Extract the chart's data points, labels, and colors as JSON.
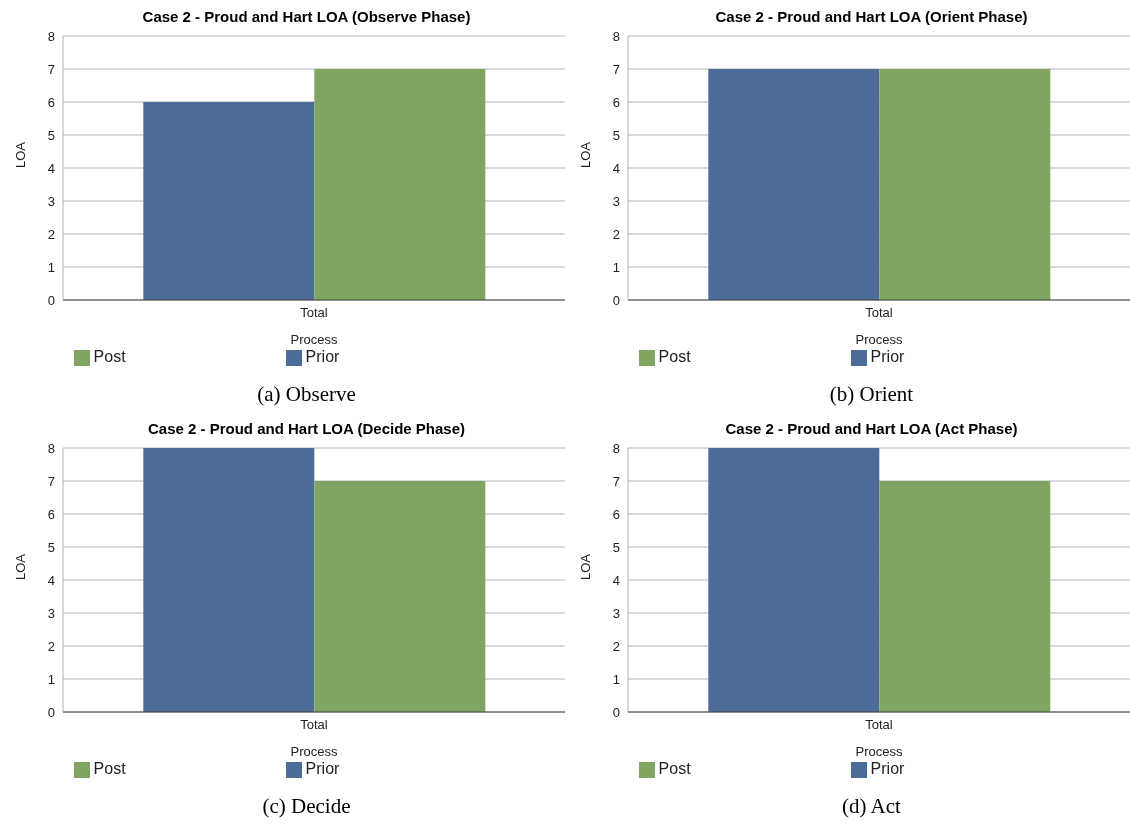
{
  "chart_data": [
    {
      "type": "bar",
      "title": "Case 2 - Proud and Hart LOA (Observe Phase)",
      "xlabel": "Process",
      "ylabel": "LOA",
      "categories": [
        "Total"
      ],
      "series": [
        {
          "name": "Prior",
          "color": "#4d6b99",
          "values": [
            6
          ]
        },
        {
          "name": "Post",
          "color": "#80a461",
          "values": [
            7
          ]
        }
      ],
      "ylim": [
        0,
        8
      ],
      "yticks": [
        0,
        1,
        2,
        3,
        4,
        5,
        6,
        7,
        8
      ],
      "grid": "y",
      "legend": "bottom",
      "annotations": [
        "(a) Observe"
      ]
    },
    {
      "type": "bar",
      "title": "Case 2 - Proud and Hart LOA (Orient Phase)",
      "xlabel": "Process",
      "ylabel": "LOA",
      "categories": [
        "Total"
      ],
      "series": [
        {
          "name": "Prior",
          "color": "#4d6b99",
          "values": [
            7
          ]
        },
        {
          "name": "Post",
          "color": "#80a461",
          "values": [
            7
          ]
        }
      ],
      "ylim": [
        0,
        8
      ],
      "yticks": [
        0,
        1,
        2,
        3,
        4,
        5,
        6,
        7,
        8
      ],
      "grid": "y",
      "legend": "bottom",
      "annotations": [
        "(b) Orient"
      ]
    },
    {
      "type": "bar",
      "title": "Case 2 - Proud and Hart LOA (Decide Phase)",
      "xlabel": "Process",
      "ylabel": "LOA",
      "categories": [
        "Total"
      ],
      "series": [
        {
          "name": "Prior",
          "color": "#4d6b99",
          "values": [
            8
          ]
        },
        {
          "name": "Post",
          "color": "#80a461",
          "values": [
            7
          ]
        }
      ],
      "ylim": [
        0,
        8
      ],
      "yticks": [
        0,
        1,
        2,
        3,
        4,
        5,
        6,
        7,
        8
      ],
      "grid": "y",
      "legend": "bottom",
      "annotations": [
        "(c) Decide"
      ]
    },
    {
      "type": "bar",
      "title": "Case 2 - Proud and Hart LOA (Act Phase)",
      "xlabel": "Process",
      "ylabel": "LOA",
      "categories": [
        "Total"
      ],
      "series": [
        {
          "name": "Prior",
          "color": "#4d6b99",
          "values": [
            8
          ]
        },
        {
          "name": "Post",
          "color": "#80a461",
          "values": [
            7
          ]
        }
      ],
      "ylim": [
        0,
        8
      ],
      "yticks": [
        0,
        1,
        2,
        3,
        4,
        5,
        6,
        7,
        8
      ],
      "grid": "y",
      "legend": "bottom",
      "annotations": [
        "(d) Act"
      ]
    }
  ]
}
